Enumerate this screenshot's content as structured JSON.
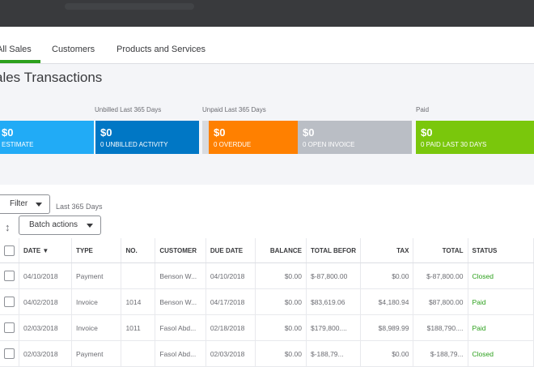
{
  "tabs": [
    "All Sales",
    "Customers",
    "Products and Services"
  ],
  "page_title": "ales Transactions",
  "sections": {
    "unbilled": "Unbilled Last 365 Days",
    "unpaid": "Unpaid Last 365 Days",
    "paid": "Paid"
  },
  "cards": [
    {
      "amount": "$0",
      "label": "ESTIMATE",
      "color": "#21abf6"
    },
    {
      "amount": "$0",
      "label": "0 UNBILLED ACTIVITY",
      "color": "#0077c5"
    },
    {
      "amount": "$0",
      "label": "0 OVERDUE",
      "color": "#ff8000"
    },
    {
      "amount": "$0",
      "label": "0 OPEN INVOICE",
      "color": "#babec5"
    },
    {
      "amount": "$0",
      "label": "0 PAID LAST 30 DAYS",
      "color": "#7ac70c"
    }
  ],
  "filter": {
    "button": "Filter",
    "range": "Last 365 Days"
  },
  "batch_actions": "Batch actions",
  "sort_icon": "sort-arrows-icon",
  "table": {
    "headers": [
      "DATE ▼",
      "TYPE",
      "NO.",
      "CUSTOMER",
      "DUE DATE",
      "BALANCE",
      "TOTAL BEFOR",
      "TAX",
      "TOTAL",
      "STATUS"
    ],
    "rows": [
      [
        "04/10/2018",
        "Payment",
        "",
        "Benson W...",
        "04/10/2018",
        "$0.00",
        "$-87,800.00",
        "$0.00",
        "$-87,800.00",
        "Closed"
      ],
      [
        "04/02/2018",
        "Invoice",
        "1014",
        "Benson W...",
        "04/17/2018",
        "$0.00",
        "$83,619.06",
        "$4,180.94",
        "$87,800.00",
        "Paid"
      ],
      [
        "02/03/2018",
        "Invoice",
        "1011",
        "Fasol Abd...",
        "02/18/2018",
        "$0.00",
        "$179,800....",
        "$8,989.99",
        "$188,790....",
        "Paid"
      ],
      [
        "02/03/2018",
        "Payment",
        "",
        "Fasol Abd...",
        "02/03/2018",
        "$0.00",
        "$-188,79...",
        "$0.00",
        "$-188,79...",
        "Closed"
      ]
    ]
  },
  "colors": {
    "accent": "#2ca01c",
    "topbar": "#393a3d"
  }
}
